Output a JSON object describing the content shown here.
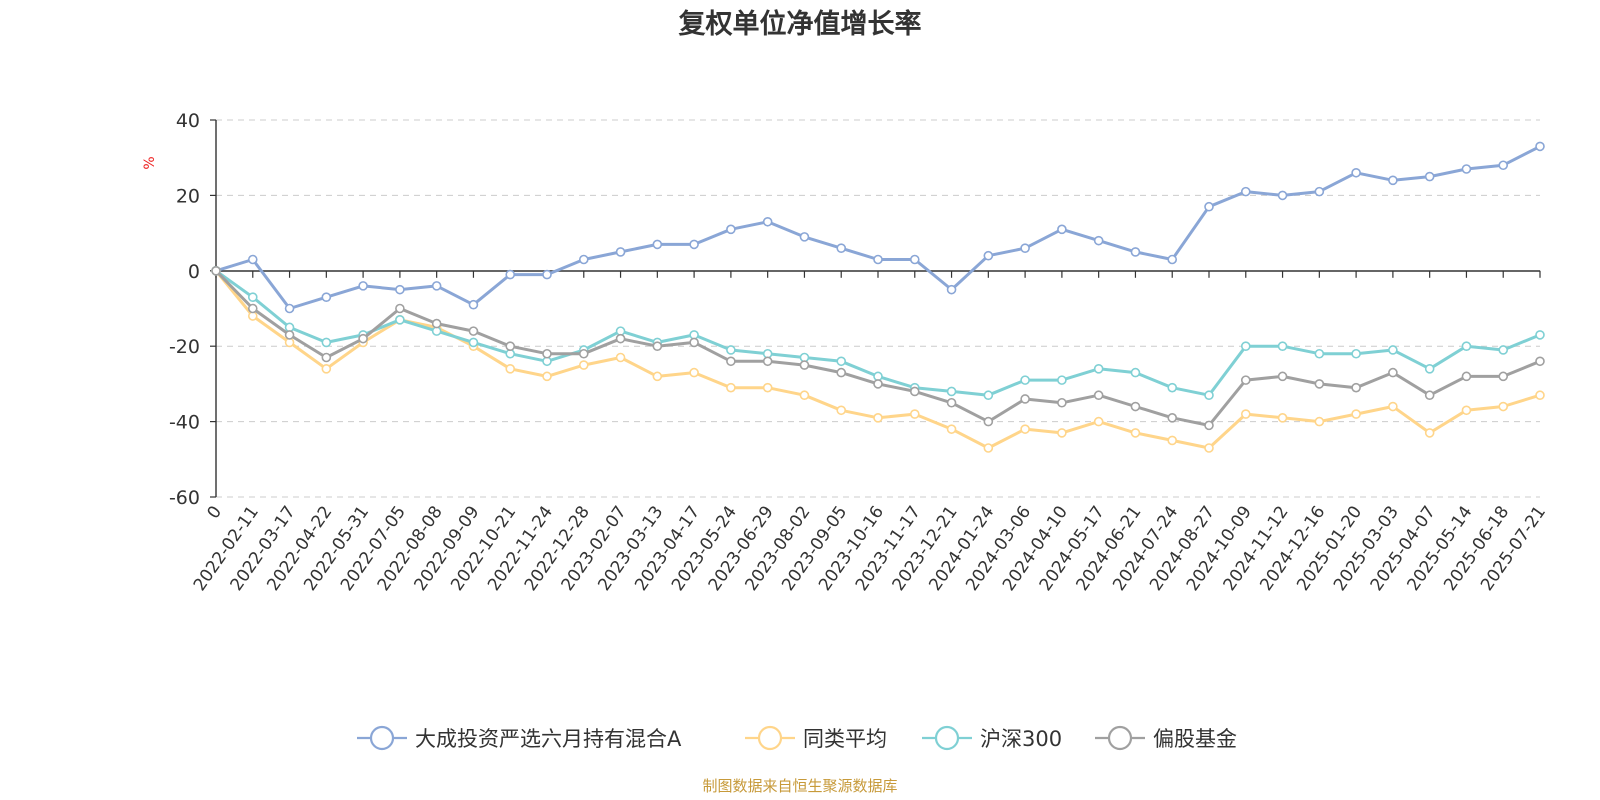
{
  "chart_data": {
    "type": "line",
    "title": "复权单位净值增长率",
    "ylabel": "%",
    "ylim": [
      -60,
      40
    ],
    "yticks": [
      40,
      20,
      0,
      -20,
      -40,
      -60
    ],
    "grid": true,
    "legend_position": "bottom",
    "x_tick_labels": [
      "0",
      "2022-02-11",
      "2022-03-17",
      "2022-04-22",
      "2022-05-31",
      "2022-07-05",
      "2022-08-08",
      "2022-09-09",
      "2022-10-21",
      "2022-11-24",
      "2022-12-28",
      "2023-02-07",
      "2023-03-13",
      "2023-04-17",
      "2023-05-24",
      "2023-06-29",
      "2023-08-02",
      "2023-09-05",
      "2023-10-16",
      "2023-11-17",
      "2023-12-21",
      "2024-01-24",
      "2024-03-06",
      "2024-04-10",
      "2024-05-17",
      "2024-06-21",
      "2024-07-24",
      "2024-08-27",
      "2024-10-09",
      "2024-11-12",
      "2024-12-16",
      "2025-01-20",
      "2025-03-03",
      "2025-04-07",
      "2025-05-14",
      "2025-06-18",
      "2025-07-21"
    ],
    "series": [
      {
        "name": "大成投资严选六月持有混合A",
        "color": "#8aa6d6",
        "values": [
          0,
          3,
          -10,
          -7,
          -4,
          -5,
          -4,
          -9,
          -1,
          -1,
          3,
          5,
          7,
          7,
          11,
          13,
          9,
          6,
          3,
          3,
          -5,
          4,
          6,
          11,
          8,
          5,
          3,
          17,
          21,
          20,
          21,
          26,
          24,
          25,
          27,
          28,
          33
        ]
      },
      {
        "name": "同类平均",
        "color": "#ffd58a",
        "values": [
          0,
          -12,
          -19,
          -26,
          -19,
          -13,
          -15,
          -20,
          -26,
          -28,
          -25,
          -23,
          -28,
          -27,
          -31,
          -31,
          -33,
          -37,
          -39,
          -38,
          -42,
          -47,
          -42,
          -43,
          -40,
          -43,
          -45,
          -47,
          -38,
          -39,
          -40,
          -38,
          -36,
          -43,
          -37,
          -36,
          -33
        ]
      },
      {
        "name": "沪深300",
        "color": "#7fd0d4",
        "values": [
          0,
          -7,
          -15,
          -19,
          -17,
          -13,
          -16,
          -19,
          -22,
          -24,
          -21,
          -16,
          -19,
          -17,
          -21,
          -22,
          -23,
          -24,
          -28,
          -31,
          -32,
          -33,
          -29,
          -29,
          -26,
          -27,
          -31,
          -33,
          -20,
          -20,
          -22,
          -22,
          -21,
          -26,
          -20,
          -21,
          -17
        ]
      },
      {
        "name": "偏股基金",
        "color": "#a0a0a0",
        "values": [
          0,
          -10,
          -17,
          -23,
          -18,
          -10,
          -14,
          -16,
          -20,
          -22,
          -22,
          -18,
          -20,
          -19,
          -24,
          -24,
          -25,
          -27,
          -30,
          -32,
          -35,
          -40,
          -34,
          -35,
          -33,
          -36,
          -39,
          -41,
          -29,
          -28,
          -30,
          -31,
          -27,
          -33,
          -28,
          -28,
          -24
        ]
      }
    ]
  },
  "source_text": "制图数据来自恒生聚源数据库"
}
